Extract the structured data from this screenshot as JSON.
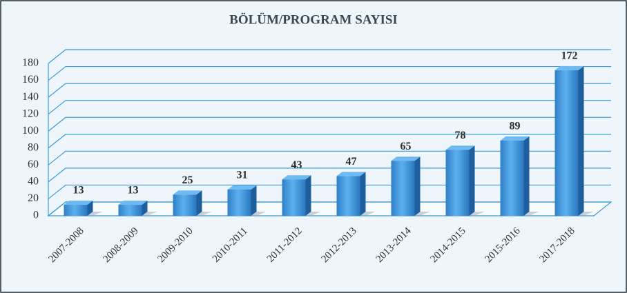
{
  "chart_data": {
    "type": "bar",
    "title": "BÖLÜM/PROGRAM SAYISI",
    "categories": [
      "2007-2008",
      "2008-2009",
      "2009-2010",
      "2010-2011",
      "2011-2012",
      "2012-2013",
      "2013-2014",
      "2014-2015",
      "2015-2016",
      "2017-2018"
    ],
    "values": [
      13,
      13,
      25,
      31,
      43,
      47,
      65,
      78,
      89,
      172
    ],
    "color": "#3a8fd6",
    "ylim": [
      0,
      180
    ],
    "yticks": [
      0,
      20,
      40,
      60,
      80,
      100,
      120,
      140,
      160,
      180
    ],
    "grid": true
  }
}
